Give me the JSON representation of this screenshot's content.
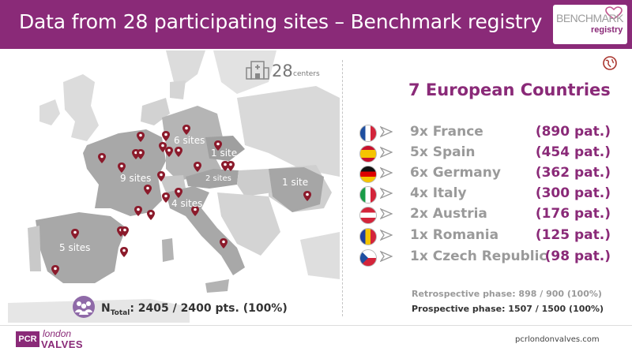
{
  "header": {
    "title": "Data from 28 participating sites – Benchmark registry"
  },
  "logo": {
    "main": "BENCHMARK",
    "sub": "registry"
  },
  "centers": {
    "count": "28",
    "label": "centers"
  },
  "map": {
    "region_labels": {
      "france": "9 sites",
      "spain": "5 sites",
      "germany": "6 sites",
      "austria": "2 sites",
      "czech": "1 site",
      "romania": "1 site",
      "italy": "4 sites"
    }
  },
  "total": {
    "prefix": "N",
    "sub": "Total",
    "value": ": 2405 / 2400 pts. (100%)"
  },
  "countries": {
    "title": "7 European Countries",
    "items": [
      {
        "label": "9x France",
        "patients": "(890 pat.)",
        "flag": "france"
      },
      {
        "label": "5x Spain",
        "patients": "(454 pat.)",
        "flag": "spain"
      },
      {
        "label": "6x Germany",
        "patients": "(362 pat.)",
        "flag": "germany"
      },
      {
        "label": "4x Italy",
        "patients": "(300 pat.)",
        "flag": "italy"
      },
      {
        "label": "2x Austria",
        "patients": "(176 pat.)",
        "flag": "austria"
      },
      {
        "label": "1x Romania",
        "patients": "(125 pat.)",
        "flag": "romania"
      },
      {
        "label": "1x Czech Republic",
        "patients": "(98 pat.)",
        "flag": "czech"
      }
    ]
  },
  "phases": {
    "retrospective": "Retrospective phase: 898 / 900 (100%)",
    "prospective": "Prospective phase: 1507 / 1500 (100%)"
  },
  "footer": {
    "badge": "PCR",
    "brand_top": "london",
    "brand_bottom": "VALVES",
    "url": "pcrlondonvalves.com"
  },
  "colors": {
    "accent": "#8a2a78",
    "pin": "#8b1a2b",
    "highlight_land": "#a8a8a8",
    "land": "#d7d7d7"
  }
}
